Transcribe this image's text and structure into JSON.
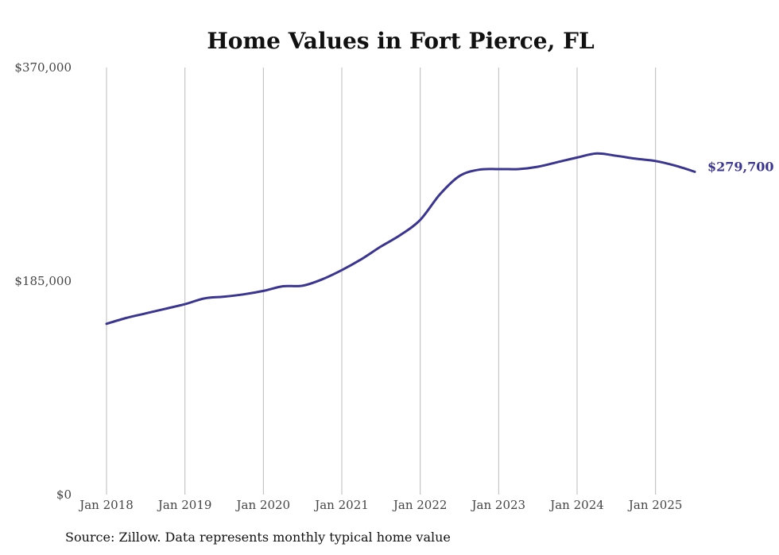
{
  "chart_data": {
    "type": "line",
    "title": "Home Values in Fort Pierce, FL",
    "source": "Source: Zillow. Data represents monthly typical home value",
    "xlabel": "",
    "ylabel": "",
    "ylim": [
      0,
      370000
    ],
    "y_ticks": [
      {
        "value": 0,
        "label": "$0"
      },
      {
        "value": 185000,
        "label": "$185,000"
      },
      {
        "value": 370000,
        "label": "$370,000"
      }
    ],
    "x_ticks": [
      {
        "value": "2018-01",
        "label": "Jan 2018"
      },
      {
        "value": "2019-01",
        "label": "Jan 2019"
      },
      {
        "value": "2020-01",
        "label": "Jan 2020"
      },
      {
        "value": "2021-01",
        "label": "Jan 2021"
      },
      {
        "value": "2022-01",
        "label": "Jan 2022"
      },
      {
        "value": "2023-01",
        "label": "Jan 2023"
      },
      {
        "value": "2024-01",
        "label": "Jan 2024"
      },
      {
        "value": "2025-01",
        "label": "Jan 2025"
      }
    ],
    "xlim": [
      "2018-01",
      "2025-07"
    ],
    "grid": {
      "vertical": true,
      "horizontal": false
    },
    "colors": {
      "line": "#3a3591",
      "grid": "#bbbbbb"
    },
    "end_label": "$279,700",
    "series": [
      {
        "points": [
          [
            "2018-01",
            148000
          ],
          [
            "2018-04",
            153000
          ],
          [
            "2018-07",
            157000
          ],
          [
            "2018-10",
            161000
          ],
          [
            "2019-01",
            165000
          ],
          [
            "2019-04",
            170000
          ],
          [
            "2019-07",
            171500
          ],
          [
            "2019-10",
            173500
          ],
          [
            "2020-01",
            176500
          ],
          [
            "2020-04",
            180500
          ],
          [
            "2020-07",
            181000
          ],
          [
            "2020-10",
            186500
          ],
          [
            "2021-01",
            194500
          ],
          [
            "2021-04",
            204000
          ],
          [
            "2021-07",
            215000
          ],
          [
            "2021-10",
            225000
          ],
          [
            "2022-01",
            238000
          ],
          [
            "2022-04",
            260000
          ],
          [
            "2022-07",
            276000
          ],
          [
            "2022-10",
            281500
          ],
          [
            "2023-01",
            282000
          ],
          [
            "2023-04",
            282000
          ],
          [
            "2023-07",
            284000
          ],
          [
            "2023-10",
            288000
          ],
          [
            "2024-01",
            292000
          ],
          [
            "2024-04",
            295500
          ],
          [
            "2024-07",
            293500
          ],
          [
            "2024-10",
            291000
          ],
          [
            "2025-01",
            289000
          ],
          [
            "2025-04",
            285000
          ],
          [
            "2025-07",
            279700
          ]
        ]
      }
    ]
  }
}
